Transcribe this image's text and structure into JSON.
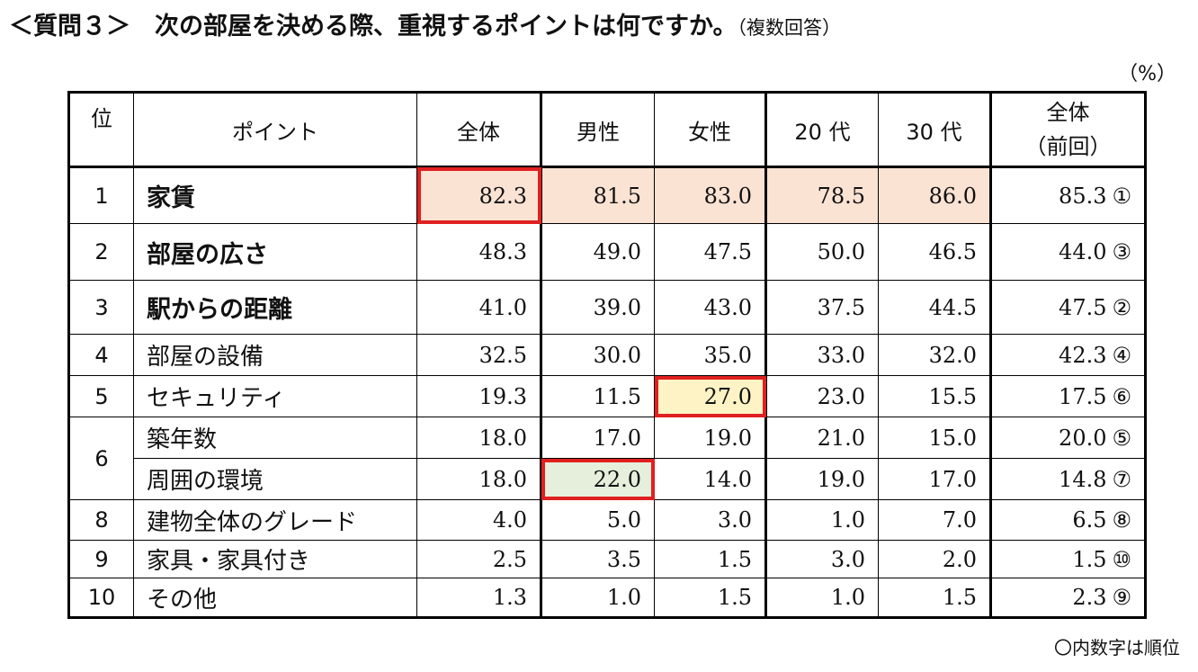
{
  "title": "＜質問３＞　次の部屋を決める際、重視するポイントは何ですか。",
  "title_note": "（複数回答）",
  "unit": "（%）",
  "footnote": "〇内数字は順位",
  "chart_data": {
    "type": "table",
    "columns": [
      "位",
      "ポイント",
      "全体",
      "男性",
      "女性",
      "20 代",
      "30 代",
      "全体\n（前回）"
    ],
    "rows": [
      {
        "rank": "1",
        "point": "家賃",
        "overall": "82.3",
        "male": "81.5",
        "female": "83.0",
        "age20": "78.5",
        "age30": "86.0",
        "prev": "85.3",
        "prev_rank": "①"
      },
      {
        "rank": "2",
        "point": "部屋の広さ",
        "overall": "48.3",
        "male": "49.0",
        "female": "47.5",
        "age20": "50.0",
        "age30": "46.5",
        "prev": "44.0",
        "prev_rank": "③"
      },
      {
        "rank": "3",
        "point": "駅からの距離",
        "overall": "41.0",
        "male": "39.0",
        "female": "43.0",
        "age20": "37.5",
        "age30": "44.5",
        "prev": "47.5",
        "prev_rank": "②"
      },
      {
        "rank": "4",
        "point": "部屋の設備",
        "overall": "32.5",
        "male": "30.0",
        "female": "35.0",
        "age20": "33.0",
        "age30": "32.0",
        "prev": "42.3",
        "prev_rank": "④"
      },
      {
        "rank": "5",
        "point": "セキュリティ",
        "overall": "19.3",
        "male": "11.5",
        "female": "27.0",
        "age20": "23.0",
        "age30": "15.5",
        "prev": "17.5",
        "prev_rank": "⑥"
      },
      {
        "rank": "6",
        "point": "築年数",
        "overall": "18.0",
        "male": "17.0",
        "female": "19.0",
        "age20": "21.0",
        "age30": "15.0",
        "prev": "20.0",
        "prev_rank": "⑤"
      },
      {
        "rank": "",
        "point": "周囲の環境",
        "overall": "18.0",
        "male": "22.0",
        "female": "14.0",
        "age20": "19.0",
        "age30": "17.0",
        "prev": "14.8",
        "prev_rank": "⑦"
      },
      {
        "rank": "8",
        "point": "建物全体のグレード",
        "overall": "4.0",
        "male": "5.0",
        "female": "3.0",
        "age20": "1.0",
        "age30": "7.0",
        "prev": "6.5",
        "prev_rank": "⑧"
      },
      {
        "rank": "9",
        "point": "家具・家具付き",
        "overall": "2.5",
        "male": "3.5",
        "female": "1.5",
        "age20": "3.0",
        "age30": "2.0",
        "prev": "1.5",
        "prev_rank": "⑩"
      },
      {
        "rank": "10",
        "point": "その他",
        "overall": "1.3",
        "male": "1.0",
        "female": "1.5",
        "age20": "1.0",
        "age30": "1.5",
        "prev": "2.3",
        "prev_rank": "⑨"
      }
    ]
  },
  "colors": {
    "highlight_border": "#e02020",
    "peach_fill": "#fbe3d3",
    "yellow_fill": "#fdf3c4",
    "green_fill": "#e6efdc"
  }
}
